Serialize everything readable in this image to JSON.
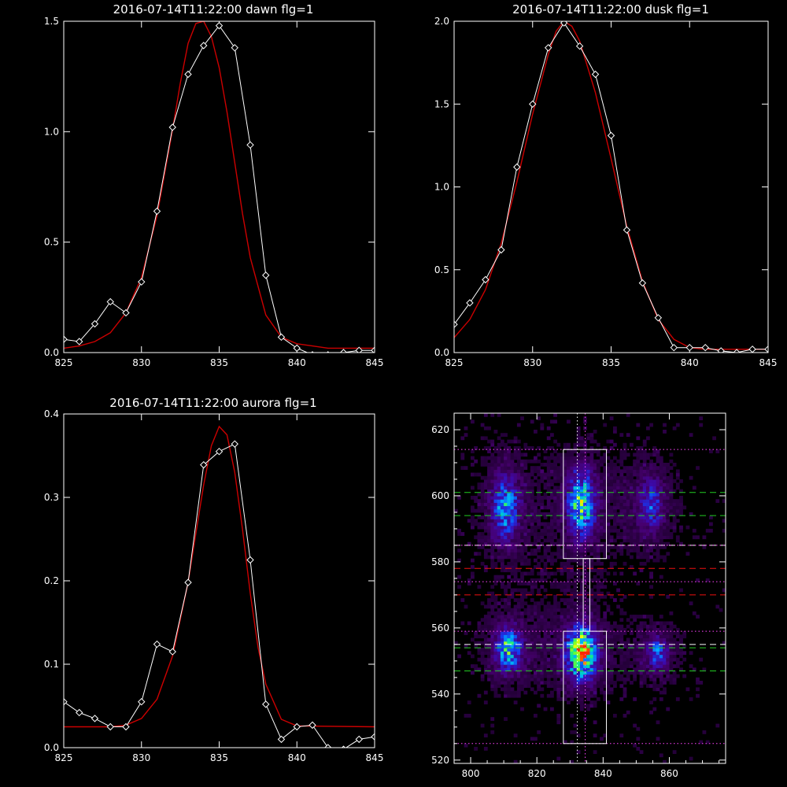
{
  "chart_data": [
    {
      "type": "line",
      "title": "2016-07-14T11:22:00 dawn flg=1",
      "xlim": [
        825,
        845
      ],
      "ylim": [
        0,
        1.5
      ],
      "x_ticks": [
        "825",
        "830",
        "835",
        "840",
        "845"
      ],
      "y_ticks": [
        "0.0",
        "0.5",
        "1.0",
        "1.5"
      ],
      "series": [
        {
          "color": "#ffffff",
          "style": "line+diamond",
          "x": [
            825,
            826,
            827,
            828,
            829,
            830,
            831,
            832,
            833,
            834,
            835,
            836,
            837,
            838,
            839,
            840,
            841,
            842,
            843,
            844,
            845
          ],
          "y": [
            0.06,
            0.05,
            0.13,
            0.23,
            0.18,
            0.32,
            0.64,
            1.02,
            1.26,
            1.39,
            1.48,
            1.38,
            0.94,
            0.35,
            0.07,
            0.02,
            -0.01,
            -0.01,
            0.0,
            0.01,
            0.01
          ]
        },
        {
          "color": "#cc0000",
          "style": "gaussian",
          "x": [
            825,
            826,
            827,
            828,
            829,
            830,
            831,
            832,
            832.5,
            833,
            833.5,
            834,
            834.5,
            835,
            835.5,
            836,
            836.5,
            837,
            838,
            839,
            840,
            841,
            842,
            843,
            844,
            845
          ],
          "y": [
            0.02,
            0.03,
            0.05,
            0.09,
            0.18,
            0.34,
            0.62,
            1.01,
            1.22,
            1.4,
            1.49,
            1.5,
            1.43,
            1.29,
            1.09,
            0.86,
            0.63,
            0.43,
            0.17,
            0.07,
            0.04,
            0.03,
            0.02,
            0.02,
            0.02,
            0.02
          ]
        }
      ]
    },
    {
      "type": "line",
      "title": "2016-07-14T11:22:00 dusk flg=1",
      "xlim": [
        825,
        845
      ],
      "ylim": [
        0,
        2.0
      ],
      "x_ticks": [
        "825",
        "830",
        "835",
        "840",
        "845"
      ],
      "y_ticks": [
        "0.0",
        "0.5",
        "1.0",
        "1.5",
        "2.0"
      ],
      "series": [
        {
          "color": "#ffffff",
          "style": "line+diamond",
          "x": [
            825,
            826,
            827,
            828,
            829,
            830,
            831,
            832,
            833,
            834,
            835,
            836,
            837,
            838,
            839,
            840,
            841,
            842,
            843,
            844,
            845
          ],
          "y": [
            0.17,
            0.3,
            0.44,
            0.62,
            1.12,
            1.5,
            1.84,
            1.99,
            1.85,
            1.68,
            1.31,
            0.74,
            0.42,
            0.21,
            0.03,
            0.03,
            0.03,
            0.01,
            0.0,
            0.02,
            0.02
          ]
        },
        {
          "color": "#cc0000",
          "style": "gaussian",
          "x": [
            825,
            826,
            827,
            828,
            829,
            830,
            831,
            831.5,
            832,
            832.5,
            833,
            834,
            835,
            836,
            837,
            838,
            839,
            840,
            841,
            842,
            843,
            844,
            845
          ],
          "y": [
            0.09,
            0.2,
            0.38,
            0.66,
            1.03,
            1.44,
            1.8,
            1.94,
            2.0,
            1.97,
            1.88,
            1.57,
            1.17,
            0.76,
            0.43,
            0.2,
            0.08,
            0.03,
            0.02,
            0.02,
            0.02,
            0.02,
            0.02
          ]
        }
      ]
    },
    {
      "type": "line",
      "title": "2016-07-14T11:22:00 aurora flg=1",
      "xlim": [
        825,
        845
      ],
      "ylim": [
        0,
        0.4
      ],
      "x_ticks": [
        "825",
        "830",
        "835",
        "840",
        "845"
      ],
      "y_ticks": [
        "0.0",
        "0.1",
        "0.2",
        "0.3",
        "0.4"
      ],
      "series": [
        {
          "color": "#ffffff",
          "style": "line+diamond",
          "x": [
            825,
            826,
            827,
            828,
            829,
            830,
            831,
            832,
            833,
            834,
            835,
            836,
            837,
            838,
            839,
            840,
            841,
            842,
            843,
            844,
            845
          ],
          "y": [
            0.055,
            0.042,
            0.035,
            0.025,
            0.025,
            0.055,
            0.124,
            0.115,
            0.198,
            0.339,
            0.355,
            0.364,
            0.225,
            0.052,
            0.01,
            0.025,
            0.027,
            0.0,
            -0.002,
            0.01,
            0.013
          ]
        },
        {
          "color": "#cc0000",
          "style": "gaussian",
          "x": [
            825,
            828,
            829,
            830,
            831,
            832,
            833,
            833.5,
            834,
            834.5,
            835,
            835.5,
            836,
            836.5,
            837,
            837.5,
            838,
            839,
            840,
            845
          ],
          "y": [
            0.025,
            0.025,
            0.027,
            0.035,
            0.058,
            0.11,
            0.198,
            0.257,
            0.315,
            0.362,
            0.385,
            0.375,
            0.33,
            0.262,
            0.185,
            0.12,
            0.076,
            0.034,
            0.026,
            0.025
          ]
        }
      ]
    },
    {
      "type": "heatmap",
      "xlim": [
        795,
        877
      ],
      "ylim": [
        519,
        625
      ],
      "x_ticks": [
        "800",
        "820",
        "840",
        "860"
      ],
      "y_ticks": [
        "520",
        "540",
        "560",
        "580",
        "600",
        "620"
      ],
      "blobs": [
        {
          "x": 810,
          "y": 596,
          "sx": 2.4,
          "sy": 6,
          "amp": 0.45
        },
        {
          "x": 833,
          "y": 597,
          "sx": 2.6,
          "sy": 6,
          "amp": 0.6
        },
        {
          "x": 854,
          "y": 597,
          "sx": 2.2,
          "sy": 5,
          "amp": 0.28
        },
        {
          "x": 811,
          "y": 553,
          "sx": 2.4,
          "sy": 4,
          "amp": 0.52
        },
        {
          "x": 833,
          "y": 552,
          "sx": 2.8,
          "sy": 5,
          "amp": 0.85
        },
        {
          "x": 856,
          "y": 552,
          "sx": 2.0,
          "sy": 3,
          "amp": 0.3
        }
      ],
      "boxes": [
        {
          "x0": 828,
          "x1": 841,
          "y0": 581,
          "y1": 614
        },
        {
          "x0": 828,
          "x1": 841,
          "y0": 525,
          "y1": 559
        },
        {
          "x0": 834,
          "x1": 836,
          "y0": 559,
          "y1": 581
        }
      ],
      "vlines": [
        {
          "x": 832.2,
          "color": "#ffffff"
        },
        {
          "x": 834.6,
          "color": "#ff44ff"
        }
      ],
      "hlines": [
        {
          "y": 614,
          "color": "#ff44ff",
          "style": "dotted"
        },
        {
          "y": 601,
          "color": "#22cc22",
          "style": "dashed"
        },
        {
          "y": 594,
          "color": "#22cc22",
          "style": "dashed"
        },
        {
          "y": 585,
          "color": "#ffffff",
          "style": "dashed"
        },
        {
          "y": 585,
          "color": "#ff44ff",
          "style": "dotted"
        },
        {
          "y": 578,
          "color": "#ee1111",
          "style": "dashed"
        },
        {
          "y": 574,
          "color": "#ff44ff",
          "style": "dotted"
        },
        {
          "y": 570,
          "color": "#ee1111",
          "style": "dashed"
        },
        {
          "y": 559,
          "color": "#ff44ff",
          "style": "dotted"
        },
        {
          "y": 555,
          "color": "#ffffff",
          "style": "dashed"
        },
        {
          "y": 554,
          "color": "#22cc22",
          "style": "dashed"
        },
        {
          "y": 547,
          "color": "#22cc22",
          "style": "dashed"
        },
        {
          "y": 525,
          "color": "#ff44ff",
          "style": "dotted"
        }
      ]
    }
  ]
}
